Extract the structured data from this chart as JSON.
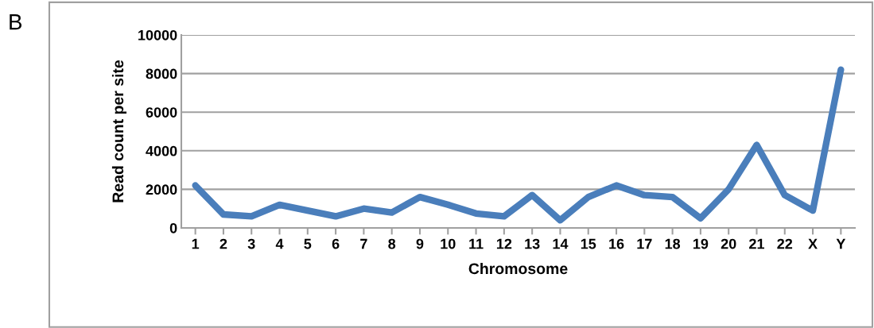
{
  "chart_data": {
    "type": "line",
    "xlabel": "Chromosome",
    "ylabel": "Read count per site",
    "categories": [
      "1",
      "2",
      "3",
      "4",
      "5",
      "6",
      "7",
      "8",
      "9",
      "10",
      "11",
      "12",
      "13",
      "14",
      "15",
      "16",
      "17",
      "18",
      "19",
      "20",
      "21",
      "22",
      "X",
      "Y"
    ],
    "series": [
      {
        "color": "#4a7ebb",
        "values": [
          2200,
          700,
          600,
          1200,
          900,
          600,
          1000,
          800,
          1600,
          1200,
          750,
          600,
          1700,
          400,
          1600,
          2200,
          1700,
          1600,
          500,
          2000,
          4300,
          1700,
          900,
          8200
        ]
      }
    ],
    "ylim": [
      0,
      10000
    ],
    "yticks": [
      0,
      2000,
      4000,
      6000,
      8000,
      10000
    ],
    "grid": "y",
    "marker": "none",
    "line_style": "solid",
    "annotations": [
      "B"
    ]
  }
}
